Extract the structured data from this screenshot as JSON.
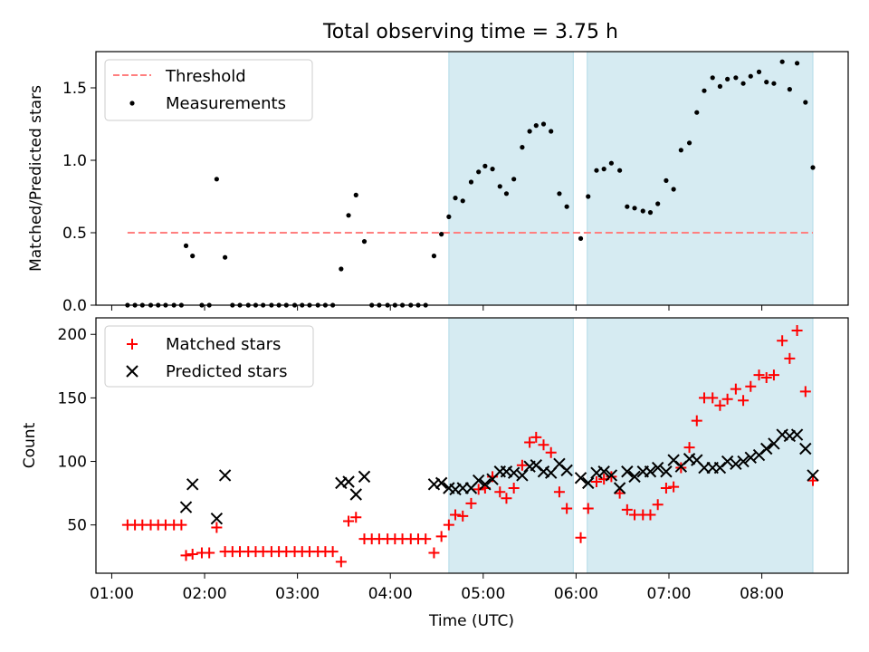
{
  "figure_title": "Total observing time = 3.75 h",
  "chart_data": [
    {
      "type": "scatter",
      "title": "Total observing time = 3.75 h",
      "xlabel": "",
      "ylabel": "Matched/Predicted stars",
      "x_unit": "time (UTC), hours",
      "xlim": [
        0.83,
        8.93
      ],
      "ylim": [
        0.0,
        1.75
      ],
      "yticks": [
        0.0,
        0.5,
        1.0,
        1.5
      ],
      "ytick_labels": [
        "0.0",
        "0.5",
        "1.0",
        "1.5"
      ],
      "legend": {
        "position": "upper left",
        "entries": [
          {
            "label": "Threshold",
            "style": "dashed-line",
            "color": "#ff7f7f"
          },
          {
            "label": "Measurements",
            "style": "dot",
            "color": "#000000"
          }
        ]
      },
      "highlight_spans": [
        [
          4.63,
          5.97
        ],
        [
          6.12,
          8.55
        ]
      ],
      "threshold": {
        "label": "Threshold",
        "y": 0.5,
        "x": [
          1.17,
          8.55
        ]
      },
      "series": [
        {
          "name": "Measurements",
          "x": [
            1.17,
            1.25,
            1.33,
            1.42,
            1.5,
            1.58,
            1.67,
            1.75,
            1.8,
            1.87,
            1.97,
            2.05,
            2.13,
            2.22,
            2.3,
            2.38,
            2.47,
            2.55,
            2.63,
            2.72,
            2.8,
            2.88,
            2.97,
            3.05,
            3.13,
            3.22,
            3.3,
            3.38,
            3.47,
            3.55,
            3.63,
            3.72,
            3.8,
            3.88,
            3.97,
            4.05,
            4.13,
            4.22,
            4.3,
            4.38,
            4.47,
            4.55,
            4.63,
            4.7,
            4.78,
            4.87,
            4.95,
            5.02,
            5.1,
            5.18,
            5.25,
            5.33,
            5.42,
            5.5,
            5.57,
            5.65,
            5.73,
            5.82,
            5.9,
            6.05,
            6.13,
            6.22,
            6.3,
            6.38,
            6.47,
            6.55,
            6.63,
            6.72,
            6.8,
            6.88,
            6.97,
            7.05,
            7.13,
            7.22,
            7.3,
            7.38,
            7.47,
            7.55,
            7.63,
            7.72,
            7.8,
            7.88,
            7.97,
            8.05,
            8.13,
            8.22,
            8.3,
            8.38,
            8.47,
            8.55
          ],
          "y": [
            0,
            0,
            0,
            0,
            0,
            0,
            0,
            0,
            0.41,
            0.34,
            0,
            0,
            0.87,
            0.33,
            0,
            0,
            0,
            0,
            0,
            0,
            0,
            0,
            0,
            0,
            0,
            0,
            0,
            0,
            0.25,
            0.62,
            0.76,
            0.44,
            0,
            0,
            0,
            0,
            0,
            0,
            0,
            0,
            0.34,
            0.49,
            0.61,
            0.74,
            0.72,
            0.85,
            0.92,
            0.96,
            0.94,
            0.82,
            0.77,
            0.87,
            1.09,
            1.2,
            1.24,
            1.25,
            1.2,
            0.77,
            0.68,
            0.46,
            0.75,
            0.93,
            0.94,
            0.98,
            0.93,
            0.68,
            0.67,
            0.65,
            0.64,
            0.7,
            0.86,
            0.8,
            1.07,
            1.12,
            1.33,
            1.48,
            1.57,
            1.51,
            1.56,
            1.57,
            1.53,
            1.58,
            1.61,
            1.54,
            1.53,
            1.68,
            1.49,
            1.67,
            1.4,
            0.95
          ]
        }
      ]
    },
    {
      "type": "scatter",
      "title": "",
      "xlabel": "Time (UTC)",
      "ylabel": "Count",
      "xlim": [
        0.83,
        8.93
      ],
      "ylim": [
        12,
        213
      ],
      "yticks": [
        50,
        100,
        150,
        200
      ],
      "ytick_labels": [
        "50",
        "100",
        "150",
        "200"
      ],
      "xticks": [
        1,
        2,
        3,
        4,
        5,
        6,
        7,
        8
      ],
      "xtick_labels": [
        "01:00",
        "02:00",
        "03:00",
        "04:00",
        "05:00",
        "06:00",
        "07:00",
        "08:00"
      ],
      "legend": {
        "position": "upper left",
        "entries": [
          {
            "label": "Matched stars",
            "style": "plus",
            "color": "#ff0000"
          },
          {
            "label": "Predicted stars",
            "style": "x",
            "color": "#000000"
          }
        ]
      },
      "highlight_spans": [
        [
          4.63,
          5.97
        ],
        [
          6.12,
          8.55
        ]
      ],
      "series": [
        {
          "name": "Matched stars",
          "x": [
            1.17,
            1.25,
            1.33,
            1.42,
            1.5,
            1.58,
            1.67,
            1.75,
            1.8,
            1.87,
            1.97,
            2.05,
            2.13,
            2.22,
            2.3,
            2.38,
            2.47,
            2.55,
            2.63,
            2.72,
            2.8,
            2.88,
            2.97,
            3.05,
            3.13,
            3.22,
            3.3,
            3.38,
            3.47,
            3.55,
            3.63,
            3.72,
            3.8,
            3.88,
            3.97,
            4.05,
            4.13,
            4.22,
            4.3,
            4.38,
            4.47,
            4.55,
            4.63,
            4.7,
            4.78,
            4.87,
            4.95,
            5.02,
            5.1,
            5.18,
            5.25,
            5.33,
            5.42,
            5.5,
            5.57,
            5.65,
            5.73,
            5.82,
            5.9,
            6.05,
            6.13,
            6.22,
            6.3,
            6.38,
            6.47,
            6.55,
            6.63,
            6.72,
            6.8,
            6.88,
            6.97,
            7.05,
            7.13,
            7.22,
            7.3,
            7.38,
            7.47,
            7.55,
            7.63,
            7.72,
            7.8,
            7.88,
            7.97,
            8.05,
            8.13,
            8.22,
            8.3,
            8.38,
            8.47,
            8.55
          ],
          "y": [
            50,
            50,
            50,
            50,
            50,
            50,
            50,
            50,
            26,
            27,
            28,
            28,
            48,
            29,
            29,
            29,
            29,
            29,
            29,
            29,
            29,
            29,
            29,
            29,
            29,
            29,
            29,
            29,
            21,
            53,
            56,
            39,
            39,
            39,
            39,
            39,
            39,
            39,
            39,
            39,
            28,
            41,
            50,
            58,
            57,
            67,
            78,
            79,
            88,
            76,
            71,
            79,
            97,
            115,
            119,
            113,
            107,
            76,
            63,
            40,
            63,
            84,
            86,
            88,
            75,
            62,
            58,
            58,
            58,
            66,
            79,
            80,
            95,
            111,
            132,
            150,
            150,
            144,
            149,
            157,
            148,
            159,
            168,
            166,
            168,
            195,
            181,
            203,
            155,
            85
          ]
        },
        {
          "name": "Predicted stars",
          "x": [
            1.8,
            1.87,
            2.13,
            2.22,
            3.47,
            3.55,
            3.63,
            3.72,
            4.47,
            4.55,
            4.63,
            4.7,
            4.78,
            4.87,
            4.95,
            5.02,
            5.1,
            5.18,
            5.25,
            5.33,
            5.42,
            5.5,
            5.57,
            5.65,
            5.73,
            5.82,
            5.9,
            6.05,
            6.13,
            6.22,
            6.3,
            6.38,
            6.47,
            6.55,
            6.63,
            6.72,
            6.8,
            6.88,
            6.97,
            7.05,
            7.13,
            7.22,
            7.3,
            7.38,
            7.47,
            7.55,
            7.63,
            7.72,
            7.8,
            7.88,
            7.97,
            8.05,
            8.13,
            8.22,
            8.3,
            8.38,
            8.47,
            8.55
          ],
          "y": [
            64,
            82,
            55,
            89,
            83,
            84,
            74,
            88,
            82,
            83,
            79,
            78,
            79,
            79,
            85,
            82,
            86,
            92,
            92,
            91,
            89,
            96,
            97,
            92,
            91,
            98,
            93,
            87,
            83,
            91,
            92,
            89,
            79,
            92,
            88,
            92,
            92,
            95,
            92,
            101,
            96,
            102,
            101,
            95,
            95,
            95,
            100,
            98,
            100,
            103,
            105,
            110,
            114,
            121,
            120,
            121,
            110,
            89
          ]
        }
      ]
    }
  ]
}
